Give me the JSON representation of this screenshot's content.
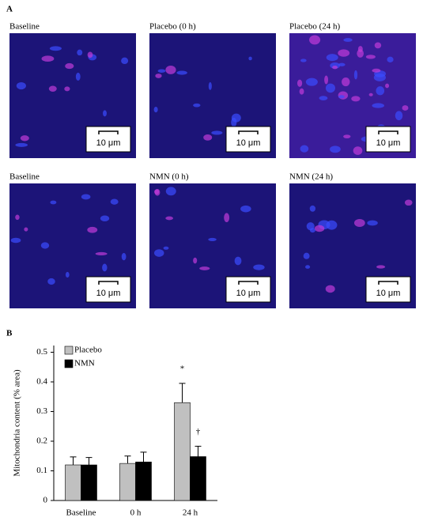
{
  "panel_a": {
    "label": "A",
    "images": [
      {
        "label": "Baseline",
        "scale": "10 μm"
      },
      {
        "label": "Placebo (0 h)",
        "scale": "10 μm"
      },
      {
        "label": "Placebo (24 h)",
        "scale": "10 μm"
      },
      {
        "label": "Baseline",
        "scale": "10 μm"
      },
      {
        "label": "NMN (0 h)",
        "scale": "10 μm"
      },
      {
        "label": "NMN (24 h)",
        "scale": "10 μm"
      }
    ]
  },
  "panel_b_label": "B",
  "chart_data": {
    "type": "bar",
    "ylabel": "Mitochondria content (% area)",
    "categories": [
      "Baseline",
      "0 h",
      "24 h"
    ],
    "series": [
      {
        "name": "Placebo",
        "color": "#c0c0c0",
        "values": [
          0.12,
          0.125,
          0.33
        ],
        "errors": [
          0.027,
          0.025,
          0.065
        ]
      },
      {
        "name": "NMN",
        "color": "#000000",
        "values": [
          0.12,
          0.13,
          0.148
        ],
        "errors": [
          0.025,
          0.033,
          0.035
        ]
      }
    ],
    "annotations": [
      "*",
      "†"
    ],
    "ylim": [
      0,
      0.5
    ],
    "yticks": [
      0,
      0.1,
      0.2,
      0.3,
      0.4,
      0.5
    ],
    "legend": "upper-left"
  }
}
